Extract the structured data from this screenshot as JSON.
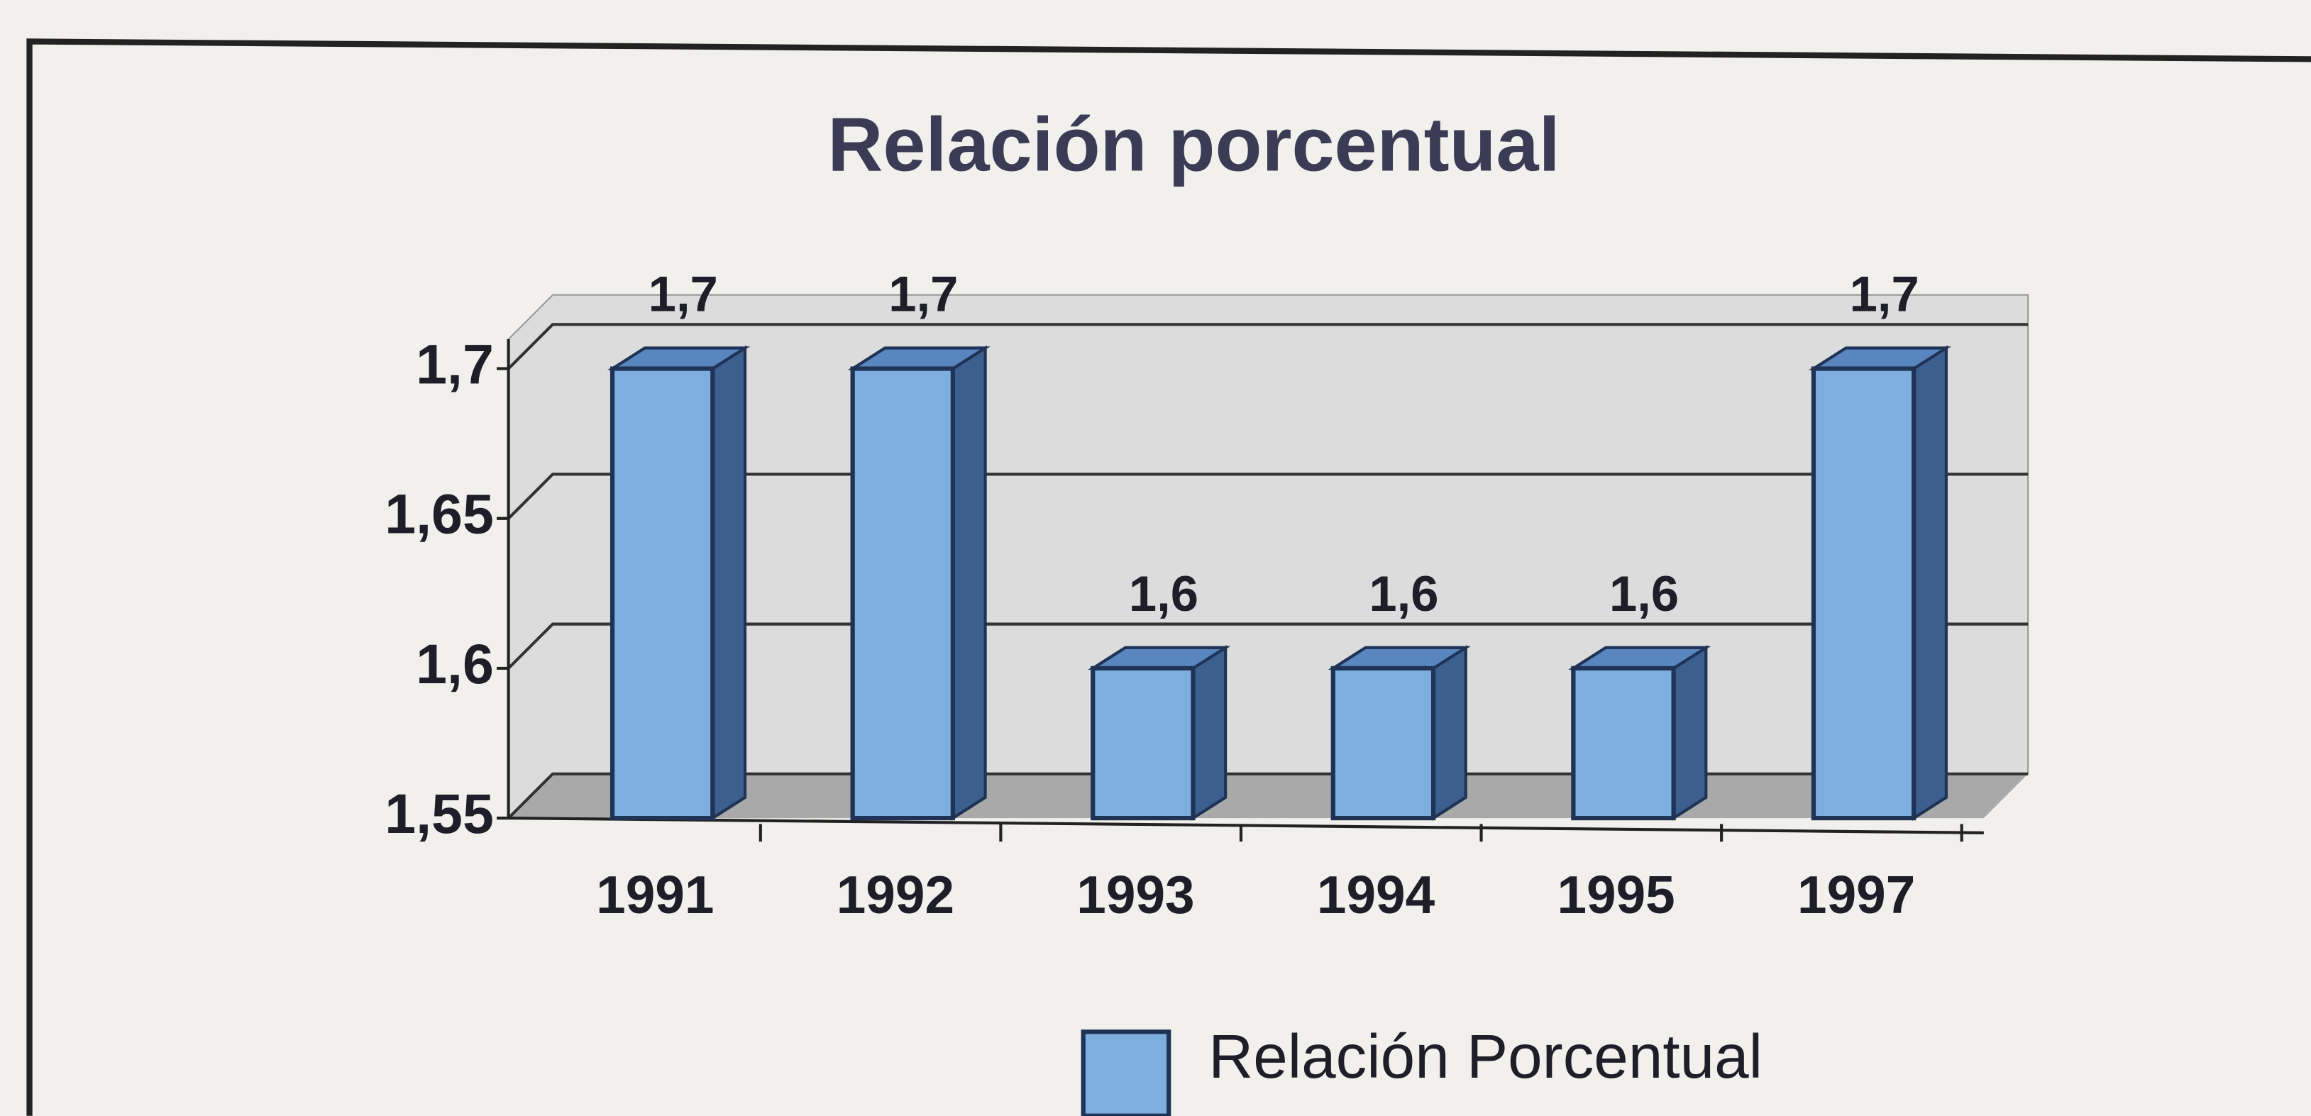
{
  "chart_data": {
    "type": "bar",
    "title": "Relación porcentual",
    "categories": [
      "1991",
      "1992",
      "1993",
      "1994",
      "1995",
      "1997"
    ],
    "series": [
      {
        "name": "Relación Porcentual",
        "color": "#7eaee0",
        "values": [
          1.7,
          1.7,
          1.6,
          1.6,
          1.6,
          1.7
        ],
        "value_labels": [
          "1,7",
          "1,7",
          "1,6",
          "1,6",
          "1,6",
          "1,7"
        ]
      }
    ],
    "ylim": [
      1.55,
      1.7
    ],
    "yticks": [
      {
        "value": 1.55,
        "label": "1,55"
      },
      {
        "value": 1.6,
        "label": "1,6"
      },
      {
        "value": 1.65,
        "label": "1,65"
      },
      {
        "value": 1.7,
        "label": "1,7"
      }
    ],
    "grid": true,
    "legend": "bottom"
  }
}
